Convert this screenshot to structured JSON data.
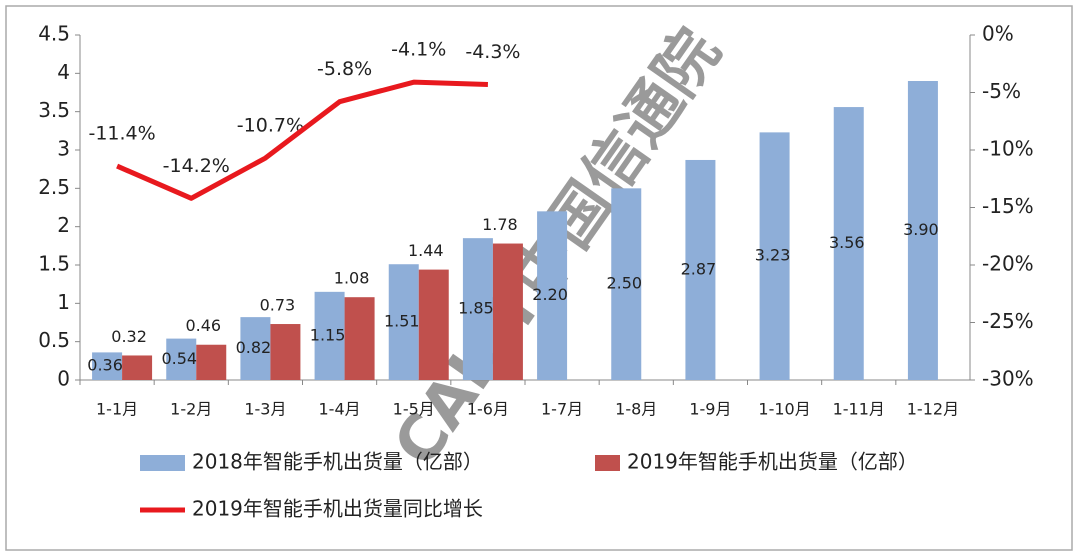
{
  "chart_data": {
    "type": "bar-line",
    "categories": [
      "1-1月",
      "1-2月",
      "1-3月",
      "1-4月",
      "1-5月",
      "1-6月",
      "1-7月",
      "1-8月",
      "1-9月",
      "1-10月",
      "1-11月",
      "1-12月"
    ],
    "series": [
      {
        "name": "2018年智能手机出货量（亿部）",
        "type": "bar",
        "color": "#8eaed8",
        "values": [
          0.36,
          0.54,
          0.82,
          1.15,
          1.51,
          1.85,
          2.2,
          2.5,
          2.87,
          3.23,
          3.56,
          3.9
        ],
        "value_labels": [
          "0.36",
          "0.54",
          "0.82",
          "1.15",
          "1.51",
          "1.85",
          "2.20",
          "2.50",
          "2.87",
          "3.23",
          "3.56",
          "3.90"
        ]
      },
      {
        "name": "2019年智能手机出货量（亿部）",
        "type": "bar",
        "color": "#c0504d",
        "values": [
          0.32,
          0.46,
          0.73,
          1.08,
          1.44,
          1.78,
          null,
          null,
          null,
          null,
          null,
          null
        ],
        "value_labels": [
          "0.32",
          "0.46",
          "0.73",
          "1.08",
          "1.44",
          "1.78",
          null,
          null,
          null,
          null,
          null,
          null
        ]
      },
      {
        "name": "2019年智能手机出货量同比增长",
        "type": "line",
        "axis": "y2",
        "color": "#e8191e",
        "values": [
          -11.4,
          -14.2,
          -10.7,
          -5.8,
          -4.1,
          -4.3,
          null,
          null,
          null,
          null,
          null,
          null
        ],
        "value_labels": [
          "-11.4%",
          "-14.2%",
          "-10.7%",
          "-5.8%",
          "-4.1%",
          "-4.3%",
          null,
          null,
          null,
          null,
          null,
          null
        ]
      }
    ],
    "ylim": [
      0,
      4.5
    ],
    "yticks": [
      0,
      0.5,
      1,
      1.5,
      2,
      2.5,
      3,
      3.5,
      4,
      4.5
    ],
    "y2lim": [
      -30,
      0
    ],
    "y2ticks": [
      {
        "value": -30,
        "label": "-30%"
      },
      {
        "value": -25,
        "label": "-25%"
      },
      {
        "value": -20,
        "label": "-20%"
      },
      {
        "value": -15,
        "label": "-15%"
      },
      {
        "value": -10,
        "label": "-10%"
      },
      {
        "value": -5,
        "label": "-5%"
      },
      {
        "value": 0,
        "label": "0%"
      }
    ],
    "grid": false,
    "watermark": "CAICT中国信通院"
  }
}
